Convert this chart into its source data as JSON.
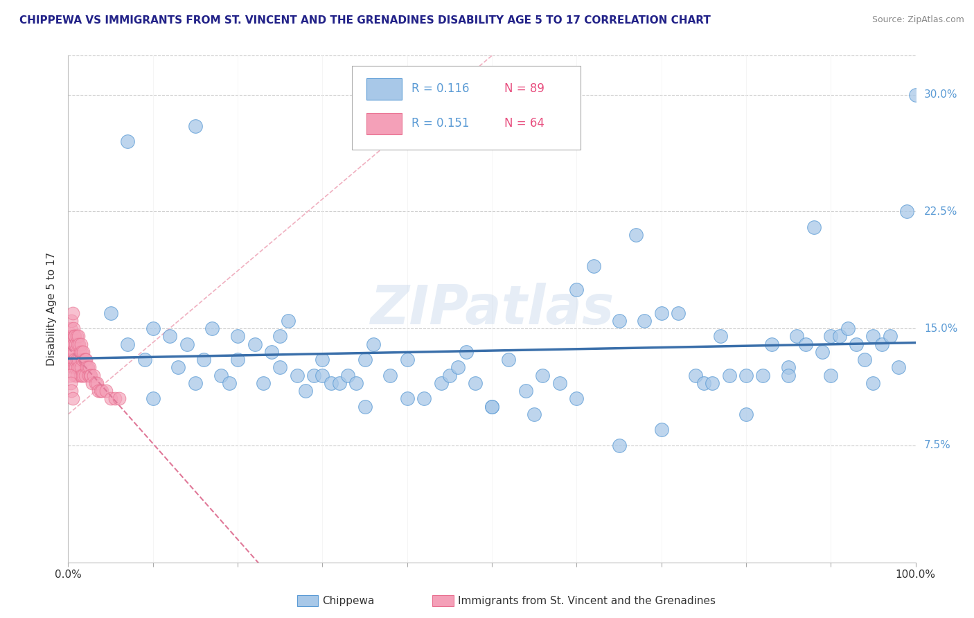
{
  "title": "CHIPPEWA VS IMMIGRANTS FROM ST. VINCENT AND THE GRENADINES DISABILITY AGE 5 TO 17 CORRELATION CHART",
  "source": "Source: ZipAtlas.com",
  "ylabel": "Disability Age 5 to 17",
  "xlim": [
    0.0,
    1.0
  ],
  "ylim": [
    0.0,
    0.325
  ],
  "ytick_labels": [
    "7.5%",
    "15.0%",
    "22.5%",
    "30.0%"
  ],
  "ytick_values": [
    0.075,
    0.15,
    0.225,
    0.3
  ],
  "legend_r1": "R = 0.116",
  "legend_n1": "N = 89",
  "legend_r2": "R = 0.151",
  "legend_n2": "N = 64",
  "color_blue": "#a8c8e8",
  "color_pink": "#f4a0b8",
  "color_blue_edge": "#5b9bd5",
  "color_pink_edge": "#e87090",
  "color_trendline_blue": "#3a6faa",
  "color_trendline_pink": "#e07898",
  "color_diagonal": "#cccccc",
  "watermark": "ZIPatlas",
  "blue_scatter_x": [
    0.05,
    0.07,
    0.09,
    0.1,
    0.12,
    0.13,
    0.14,
    0.15,
    0.16,
    0.17,
    0.18,
    0.19,
    0.2,
    0.22,
    0.23,
    0.24,
    0.25,
    0.26,
    0.27,
    0.28,
    0.29,
    0.3,
    0.31,
    0.32,
    0.33,
    0.34,
    0.35,
    0.36,
    0.38,
    0.4,
    0.42,
    0.44,
    0.45,
    0.46,
    0.47,
    0.48,
    0.5,
    0.52,
    0.54,
    0.56,
    0.58,
    0.6,
    0.62,
    0.65,
    0.67,
    0.68,
    0.7,
    0.72,
    0.74,
    0.75,
    0.76,
    0.77,
    0.78,
    0.8,
    0.82,
    0.83,
    0.85,
    0.86,
    0.87,
    0.88,
    0.89,
    0.9,
    0.91,
    0.92,
    0.93,
    0.94,
    0.95,
    0.96,
    0.97,
    0.98,
    0.99,
    1.0,
    0.1,
    0.2,
    0.3,
    0.4,
    0.5,
    0.6,
    0.7,
    0.8,
    0.9,
    0.95,
    0.07,
    0.15,
    0.25,
    0.35,
    0.55,
    0.65,
    0.85
  ],
  "blue_scatter_y": [
    0.16,
    0.14,
    0.13,
    0.15,
    0.145,
    0.125,
    0.14,
    0.115,
    0.13,
    0.15,
    0.12,
    0.115,
    0.145,
    0.14,
    0.115,
    0.135,
    0.145,
    0.155,
    0.12,
    0.11,
    0.12,
    0.12,
    0.115,
    0.115,
    0.12,
    0.115,
    0.13,
    0.14,
    0.12,
    0.13,
    0.105,
    0.115,
    0.12,
    0.125,
    0.135,
    0.115,
    0.1,
    0.13,
    0.11,
    0.12,
    0.115,
    0.175,
    0.19,
    0.155,
    0.21,
    0.155,
    0.16,
    0.16,
    0.12,
    0.115,
    0.115,
    0.145,
    0.12,
    0.12,
    0.12,
    0.14,
    0.125,
    0.145,
    0.14,
    0.215,
    0.135,
    0.145,
    0.145,
    0.15,
    0.14,
    0.13,
    0.145,
    0.14,
    0.145,
    0.125,
    0.225,
    0.3,
    0.105,
    0.13,
    0.13,
    0.105,
    0.1,
    0.105,
    0.085,
    0.095,
    0.12,
    0.115,
    0.27,
    0.28,
    0.125,
    0.1,
    0.095,
    0.075,
    0.12
  ],
  "pink_scatter_x": [
    0.002,
    0.003,
    0.003,
    0.003,
    0.004,
    0.004,
    0.004,
    0.005,
    0.005,
    0.005,
    0.006,
    0.006,
    0.006,
    0.007,
    0.007,
    0.007,
    0.008,
    0.008,
    0.008,
    0.009,
    0.009,
    0.01,
    0.01,
    0.01,
    0.011,
    0.011,
    0.012,
    0.012,
    0.013,
    0.013,
    0.014,
    0.014,
    0.015,
    0.015,
    0.016,
    0.016,
    0.017,
    0.018,
    0.018,
    0.019,
    0.02,
    0.02,
    0.021,
    0.022,
    0.023,
    0.024,
    0.025,
    0.026,
    0.027,
    0.028,
    0.03,
    0.032,
    0.034,
    0.036,
    0.038,
    0.04,
    0.045,
    0.05,
    0.055,
    0.06,
    0.002,
    0.003,
    0.004,
    0.005
  ],
  "pink_scatter_y": [
    0.13,
    0.15,
    0.14,
    0.135,
    0.155,
    0.145,
    0.13,
    0.16,
    0.135,
    0.125,
    0.15,
    0.14,
    0.13,
    0.145,
    0.135,
    0.125,
    0.145,
    0.13,
    0.12,
    0.14,
    0.125,
    0.145,
    0.13,
    0.12,
    0.14,
    0.125,
    0.145,
    0.13,
    0.14,
    0.125,
    0.135,
    0.12,
    0.14,
    0.125,
    0.135,
    0.12,
    0.13,
    0.135,
    0.12,
    0.13,
    0.13,
    0.12,
    0.13,
    0.125,
    0.125,
    0.12,
    0.125,
    0.12,
    0.12,
    0.115,
    0.12,
    0.115,
    0.115,
    0.11,
    0.11,
    0.11,
    0.11,
    0.105,
    0.105,
    0.105,
    0.12,
    0.115,
    0.11,
    0.105
  ]
}
